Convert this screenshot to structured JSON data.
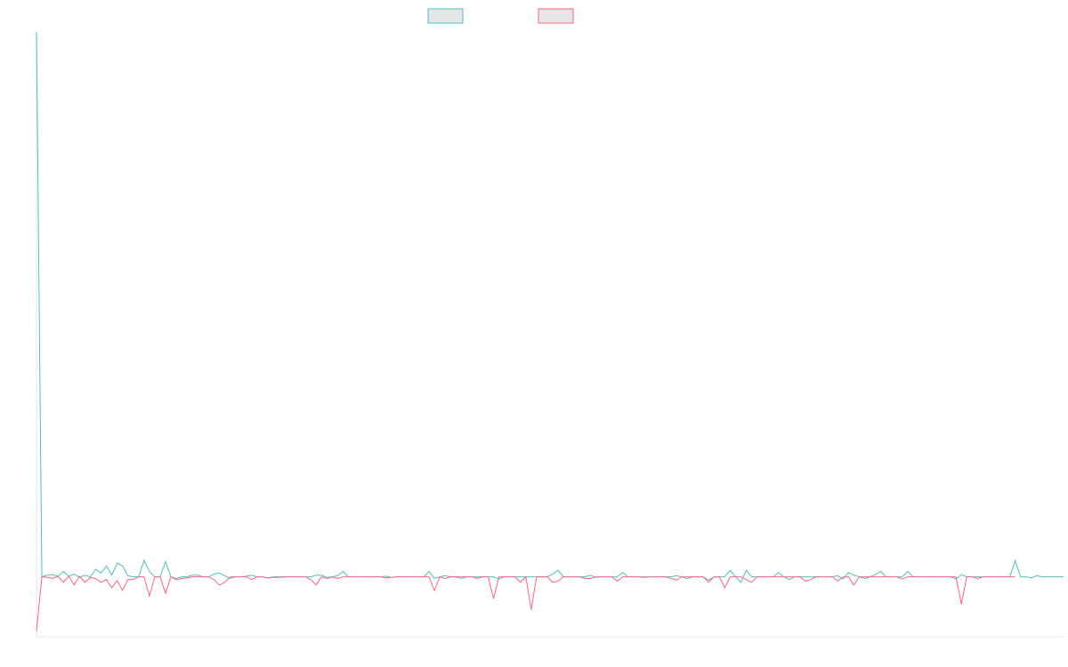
{
  "chart_data": {
    "type": "line",
    "title": "",
    "xlabel": "",
    "ylabel": "",
    "grid": false,
    "legend_position": "top-center",
    "colors": {
      "series_a": "#4bc0c0",
      "series_b": "#ff6384",
      "legend_fill": "#e6e6e6",
      "axis": "#e5e5e5"
    },
    "ylim": [
      -110,
      1000
    ],
    "series": [
      {
        "values": [
          1000,
          0,
          3,
          4,
          1,
          10,
          1,
          5,
          -1,
          3,
          0,
          14,
          7,
          20,
          3,
          25,
          20,
          2,
          0,
          0,
          30,
          10,
          0,
          0,
          28,
          0,
          -3,
          0,
          0,
          3,
          3,
          0,
          0,
          5,
          7,
          2,
          -3,
          0,
          0,
          1,
          3,
          0,
          0,
          -2,
          0,
          0,
          0,
          0,
          0,
          0,
          0,
          0,
          3,
          3,
          -1,
          0,
          2,
          10,
          0,
          0,
          0,
          0,
          0,
          0,
          0,
          1,
          -1,
          0,
          0,
          0,
          0,
          0,
          0,
          10,
          -3,
          0,
          2,
          0,
          0,
          -3,
          0,
          0,
          0,
          0,
          0,
          0,
          -4,
          0,
          0,
          0,
          0,
          0,
          0,
          0,
          0,
          0,
          5,
          12,
          0,
          0,
          0,
          0,
          0,
          3,
          -1,
          0,
          0,
          0,
          0,
          8,
          0,
          0,
          0,
          0,
          0,
          0,
          0,
          0,
          0,
          2,
          0,
          -3,
          0,
          0,
          0,
          -6,
          0,
          0,
          0,
          12,
          0,
          -10,
          12,
          0,
          0,
          0,
          0,
          0,
          8,
          0,
          -5,
          0,
          0,
          0,
          0,
          0,
          0,
          0,
          0,
          2,
          -4,
          8,
          3,
          0,
          -3,
          0,
          4,
          10,
          0,
          0,
          0,
          0,
          10,
          0,
          0,
          0,
          0,
          0,
          0,
          0,
          0,
          -4,
          4,
          0,
          0,
          0,
          0,
          0,
          0,
          0,
          0,
          0,
          30,
          0,
          0,
          -2,
          2,
          0,
          0,
          0,
          0,
          0
        ],
        "color": "#4bc0c0"
      },
      {
        "values": [
          -100,
          0,
          -1,
          -3,
          1,
          -10,
          1,
          -15,
          1,
          -10,
          -1,
          -3,
          -10,
          -5,
          -20,
          -7,
          -25,
          -5,
          -5,
          0,
          0,
          -35,
          0,
          0,
          -30,
          0,
          -5,
          -3,
          -2,
          0,
          0,
          0,
          0,
          -5,
          -15,
          -10,
          0,
          0,
          0,
          0,
          -5,
          0,
          0,
          -2,
          -1,
          -1,
          0,
          0,
          0,
          0,
          0,
          -5,
          -15,
          0,
          -3,
          0,
          -3,
          0,
          0,
          0,
          0,
          0,
          0,
          0,
          0,
          -2,
          -1,
          0,
          0,
          0,
          0,
          0,
          0,
          0,
          -25,
          0,
          -3,
          0,
          0,
          0,
          0,
          0,
          -3,
          0,
          0,
          -40,
          0,
          0,
          0,
          0,
          -10,
          0,
          -60,
          0,
          0,
          0,
          -10,
          -8,
          0,
          0,
          0,
          0,
          -3,
          -3,
          0,
          0,
          0,
          0,
          -8,
          0,
          0,
          0,
          0,
          -1,
          0,
          0,
          0,
          0,
          -3,
          -6,
          0,
          0,
          0,
          0,
          0,
          -10,
          0,
          0,
          -20,
          0,
          0,
          0,
          -5,
          -10,
          0,
          0,
          0,
          0,
          0,
          0,
          0,
          0,
          0,
          -8,
          -5,
          0,
          0,
          0,
          0,
          -8,
          0,
          0,
          -15,
          0,
          0,
          0,
          0,
          0,
          0,
          0,
          0,
          -4,
          0,
          0,
          0,
          0,
          0,
          0,
          0,
          0,
          0,
          0,
          -50,
          0,
          0,
          -3,
          0,
          0,
          0,
          0,
          0,
          0,
          0
        ],
        "color": "#ff6384"
      }
    ]
  }
}
